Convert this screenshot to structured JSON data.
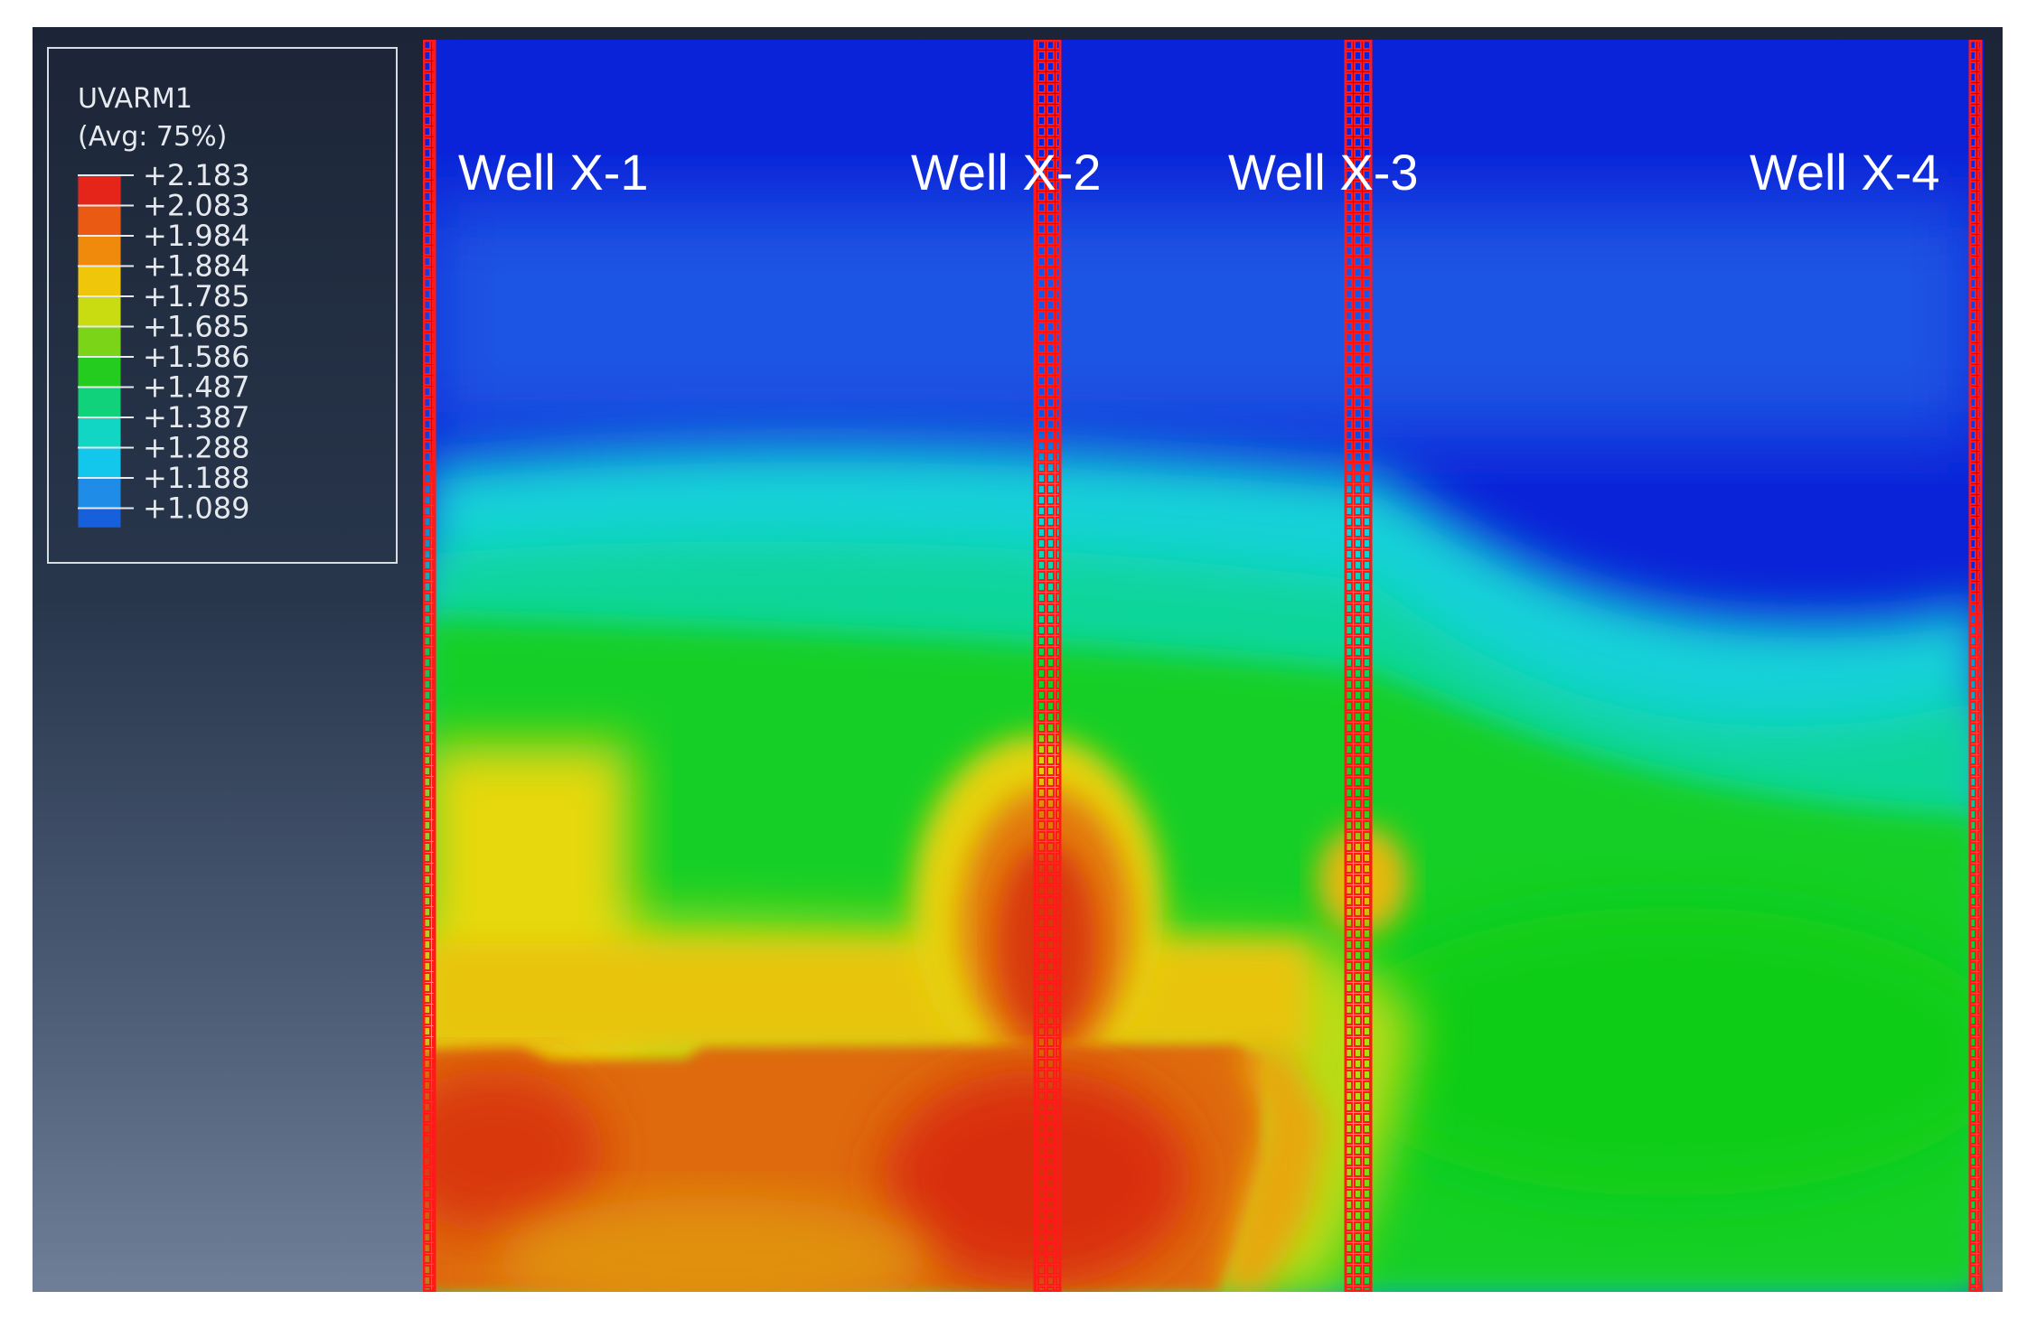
{
  "legend": {
    "variable": "UVARM1",
    "averaging": "(Avg: 75%)",
    "ticks": [
      "+2.183",
      "+2.083",
      "+1.984",
      "+1.884",
      "+1.785",
      "+1.685",
      "+1.586",
      "+1.487",
      "+1.387",
      "+1.288",
      "+1.188",
      "+1.089"
    ],
    "band_colors": [
      "#e5251a",
      "#ea5a12",
      "#f08a0d",
      "#f0c60a",
      "#c9dc12",
      "#7bd418",
      "#25cc20",
      "#0fd27a",
      "#11d6c4",
      "#12c6ec",
      "#1f8de8",
      "#1760dc"
    ]
  },
  "wells": [
    {
      "label": "Well X-1"
    },
    {
      "label": "Well X-2"
    },
    {
      "label": "Well X-3"
    },
    {
      "label": "Well X-4"
    }
  ],
  "colors": {
    "well_outline": "#ff1a1a",
    "viewport_top": "#1c2537",
    "viewport_bottom": "#6f7f97"
  }
}
